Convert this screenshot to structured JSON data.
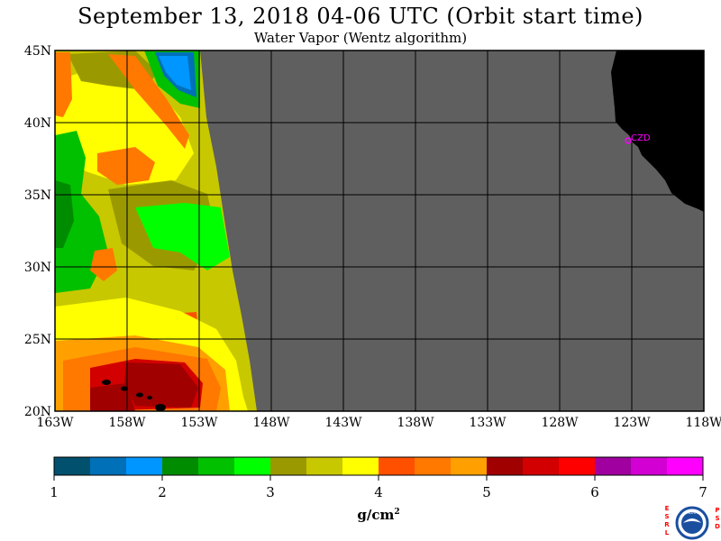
{
  "title": "September 13, 2018  04-06 UTC  (Orbit start time)",
  "subtitle": "Water Vapor (Wentz algorithm)",
  "station_label": "CZD",
  "map": {
    "lat_labels": [
      "45N",
      "40N",
      "35N",
      "30N",
      "25N",
      "20N"
    ],
    "lon_labels": [
      "163W",
      "158W",
      "153W",
      "148W",
      "143W",
      "138W",
      "133W",
      "128W",
      "123W",
      "118W"
    ],
    "no_data_color": "#5f5f5f",
    "land_color": "#000000",
    "station_color": "#ff00ff"
  },
  "colorbar": {
    "tick_labels": [
      "1",
      "2",
      "3",
      "4",
      "5",
      "6",
      "7"
    ],
    "unit_main": "g/cm",
    "unit_sup": "2",
    "colors": [
      "#00506e",
      "#0070b8",
      "#0096ff",
      "#008c00",
      "#00c000",
      "#00ff00",
      "#9a9a00",
      "#c8c800",
      "#ffff00",
      "#ff5000",
      "#ff7800",
      "#ffa000",
      "#a00000",
      "#d20000",
      "#ff0000",
      "#a000a0",
      "#d200d2",
      "#ff00ff"
    ]
  },
  "logo": {
    "left_letters": "ESRL",
    "right_letters": "PSD",
    "center_text": "NOAA",
    "left_color": "#ff0000",
    "right_color": "#ff0000",
    "ring_color": "#1a4fa0"
  }
}
